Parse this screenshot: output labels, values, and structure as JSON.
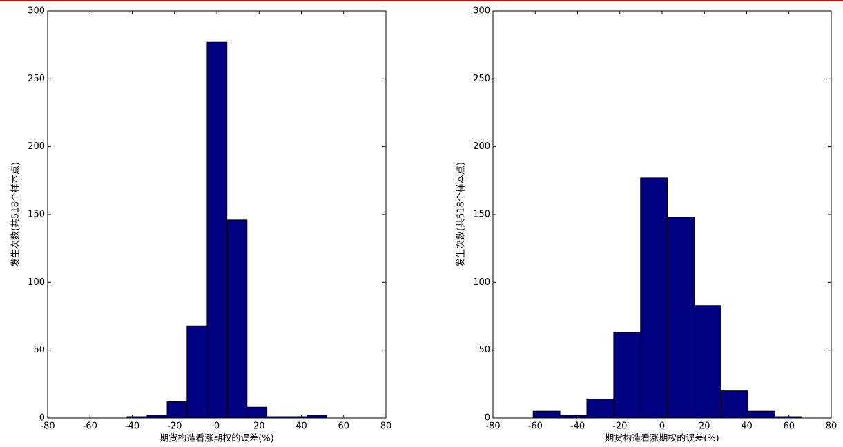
{
  "chart_data": [
    {
      "type": "histogram",
      "color": "#000080",
      "bins": [
        -42.4,
        -33.0,
        -23.5,
        -14.1,
        -4.6,
        4.8,
        14.3,
        23.7,
        33.2,
        42.6,
        52.1
      ],
      "values": [
        1,
        2,
        12,
        68,
        277,
        146,
        8,
        1,
        1,
        2
      ],
      "xlim": [
        -80,
        80
      ],
      "ylim": [
        0,
        300
      ],
      "xticks": [
        -80,
        -60,
        -40,
        -20,
        0,
        20,
        40,
        60,
        80
      ],
      "yticks": [
        0,
        50,
        100,
        150,
        200,
        250,
        300
      ],
      "xlabel": "期货构造看涨期权的误差(%)",
      "ylabel": "发生次数(共518个样本点)"
    },
    {
      "type": "histogram",
      "color": "#000080",
      "bins": [
        -61.0,
        -48.3,
        -35.6,
        -22.9,
        -10.2,
        2.5,
        15.2,
        27.9,
        40.6,
        53.3,
        66.0
      ],
      "values": [
        5,
        2,
        14,
        63,
        177,
        148,
        83,
        20,
        5,
        1
      ],
      "xlim": [
        -80,
        80
      ],
      "ylim": [
        0,
        300
      ],
      "xticks": [
        -80,
        -60,
        -40,
        -20,
        0,
        20,
        40,
        60,
        80
      ],
      "yticks": [
        0,
        50,
        100,
        150,
        200,
        250,
        300
      ],
      "xlabel": "期货构造看涨期权的误差(%)",
      "ylabel": "发生次数(共518个样本点)"
    }
  ]
}
